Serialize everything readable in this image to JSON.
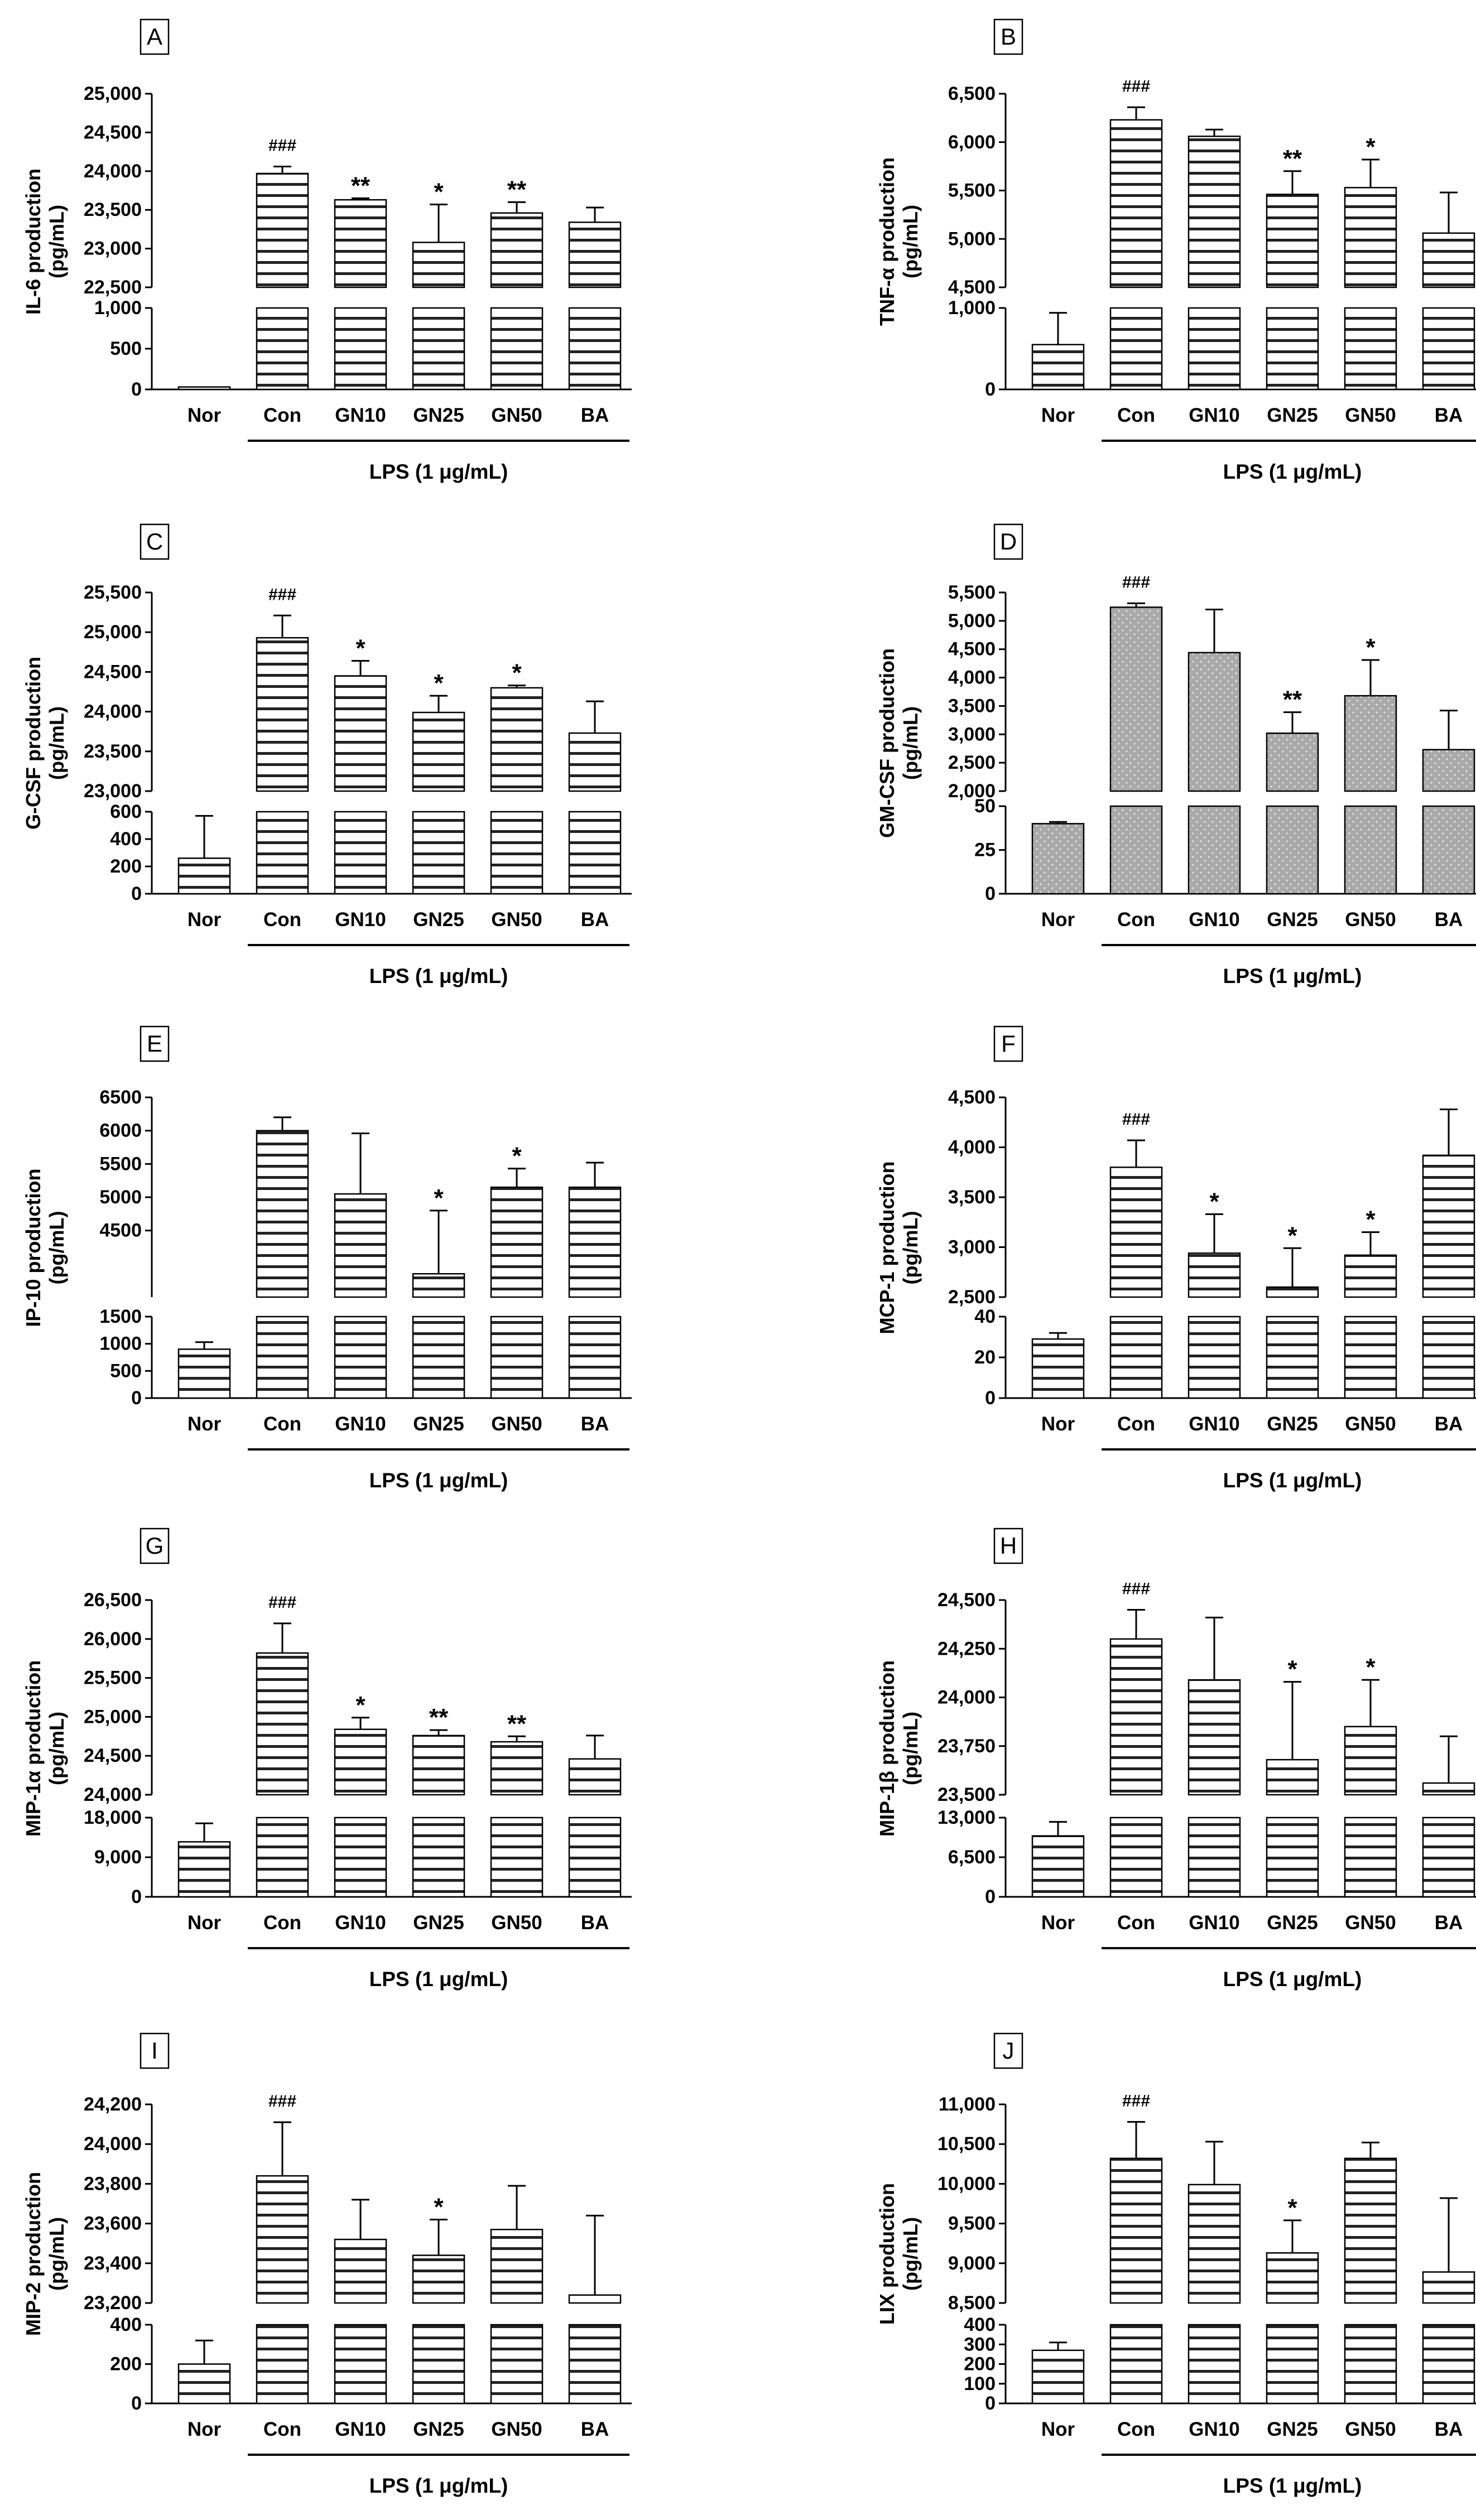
{
  "figure": {
    "group_label": "LPS (1 μg/mL)",
    "categories": [
      "Nor",
      "Con",
      "GN10",
      "GN25",
      "GN50",
      "BA"
    ]
  },
  "chart_data": [
    {
      "panel": "A",
      "type": "bar",
      "ylabel": [
        "IL-6 production",
        "(pg/mL)"
      ],
      "fill": "hlines",
      "categories": [
        "Nor",
        "Con",
        "GN10",
        "GN25",
        "GN50",
        "BA"
      ],
      "values": [
        30,
        23970,
        23630,
        23080,
        23460,
        23340
      ],
      "errors": [
        0,
        90,
        20,
        490,
        140,
        190
      ],
      "marks": [
        "",
        "###",
        "**",
        "*",
        "**",
        ""
      ],
      "upper": {
        "range": [
          22500,
          25000
        ],
        "ticks": [
          22500,
          23000,
          23500,
          24000,
          24500,
          25000
        ],
        "tick_labels": [
          "22,500",
          "23,000",
          "23,500",
          "24,000",
          "24,500",
          "25,000"
        ]
      },
      "lower": {
        "range": [
          0,
          1000
        ],
        "ticks": [
          0,
          500,
          1000
        ],
        "tick_labels": [
          "0",
          "500",
          "1,000"
        ]
      }
    },
    {
      "panel": "B",
      "type": "bar",
      "ylabel": [
        "TNF-α production",
        "(pg/mL)"
      ],
      "fill": "hlines",
      "categories": [
        "Nor",
        "Con",
        "GN10",
        "GN25",
        "GN50",
        "BA"
      ],
      "values": [
        550,
        6230,
        6060,
        5460,
        5530,
        5060
      ],
      "errors": [
        390,
        130,
        70,
        240,
        290,
        420
      ],
      "marks": [
        "",
        "###",
        "",
        "**",
        "*",
        ""
      ],
      "upper": {
        "range": [
          4500,
          6500
        ],
        "ticks": [
          4500,
          5000,
          5500,
          6000,
          6500
        ],
        "tick_labels": [
          "4,500",
          "5,000",
          "5,500",
          "6,000",
          "6,500"
        ]
      },
      "lower": {
        "range": [
          0,
          1000
        ],
        "ticks": [
          0,
          1000
        ],
        "tick_labels": [
          "0",
          "1,000"
        ]
      }
    },
    {
      "panel": "C",
      "type": "bar",
      "ylabel": [
        "G-CSF production",
        "(pg/mL)"
      ],
      "fill": "hlines",
      "categories": [
        "Nor",
        "Con",
        "GN10",
        "GN25",
        "GN50",
        "BA"
      ],
      "values": [
        260,
        24930,
        24450,
        23990,
        24300,
        23730
      ],
      "errors": [
        310,
        280,
        190,
        210,
        30,
        400
      ],
      "marks": [
        "",
        "###",
        "*",
        "*",
        "*",
        ""
      ],
      "upper": {
        "range": [
          23000,
          25500
        ],
        "ticks": [
          23000,
          23500,
          24000,
          24500,
          25000,
          25500
        ],
        "tick_labels": [
          "23,000",
          "23,500",
          "24,000",
          "24,500",
          "25,000",
          "25,500"
        ]
      },
      "lower": {
        "range": [
          0,
          600
        ],
        "ticks": [
          0,
          200,
          400,
          600
        ],
        "tick_labels": [
          "0",
          "200",
          "400",
          "600"
        ]
      }
    },
    {
      "panel": "D",
      "type": "bar",
      "ylabel": [
        "GM-CSF production",
        "(pg/mL)"
      ],
      "fill": "dots",
      "categories": [
        "Nor",
        "Con",
        "GN10",
        "GN25",
        "GN50",
        "BA"
      ],
      "values": [
        40,
        5240,
        4440,
        3020,
        3680,
        2730
      ],
      "errors": [
        1,
        70,
        760,
        370,
        630,
        690
      ],
      "marks": [
        "",
        "###",
        "",
        "**",
        "*",
        ""
      ],
      "upper": {
        "range": [
          2000,
          5500
        ],
        "ticks": [
          2000,
          2500,
          3000,
          3500,
          4000,
          4500,
          5000,
          5500
        ],
        "tick_labels": [
          "2,000",
          "2,500",
          "3,000",
          "3,500",
          "4,000",
          "4,500",
          "5,000",
          "5,500"
        ]
      },
      "lower": {
        "range": [
          0,
          50
        ],
        "ticks": [
          0,
          25,
          50
        ],
        "tick_labels": [
          "0",
          "25",
          "50"
        ]
      }
    },
    {
      "panel": "E",
      "type": "bar",
      "ylabel": [
        "IP-10 production",
        "(pg/mL)"
      ],
      "fill": "hlines",
      "categories": [
        "Nor",
        "Con",
        "GN10",
        "GN25",
        "GN50",
        "BA"
      ],
      "values": [
        900,
        6000,
        5050,
        3850,
        5150,
        5150
      ],
      "errors": [
        130,
        200,
        910,
        950,
        280,
        370
      ],
      "marks": [
        "",
        "",
        "",
        "*",
        "*",
        ""
      ],
      "upper": {
        "range": [
          3500,
          6500
        ],
        "ticks": [
          4500,
          5000,
          5500,
          6000,
          6500
        ],
        "tick_labels": [
          "4500",
          "5000",
          "5500",
          "6000",
          "6500"
        ]
      },
      "lower": {
        "range": [
          0,
          1500
        ],
        "ticks": [
          0,
          500,
          1000,
          1500
        ],
        "tick_labels": [
          "0",
          "500",
          "1000",
          "1500"
        ]
      }
    },
    {
      "panel": "F",
      "type": "bar",
      "ylabel": [
        "MCP-1 production",
        "(pg/mL)"
      ],
      "fill": "hlines",
      "categories": [
        "Nor",
        "Con",
        "GN10",
        "GN25",
        "GN50",
        "BA"
      ],
      "values": [
        29,
        3800,
        2940,
        2600,
        2920,
        3920
      ],
      "errors": [
        3,
        270,
        390,
        390,
        230,
        460
      ],
      "marks": [
        "",
        "###",
        "*",
        "*",
        "*",
        ""
      ],
      "upper": {
        "range": [
          2500,
          4500
        ],
        "ticks": [
          2500,
          3000,
          3500,
          4000,
          4500
        ],
        "tick_labels": [
          "2,500",
          "3,000",
          "3,500",
          "4,000",
          "4,500"
        ]
      },
      "lower": {
        "range": [
          0,
          40
        ],
        "ticks": [
          0,
          20,
          40
        ],
        "tick_labels": [
          "0",
          "20",
          "40"
        ]
      }
    },
    {
      "panel": "G",
      "type": "bar",
      "ylabel": [
        "MIP-1α production",
        "(pg/mL)"
      ],
      "fill": "hlines",
      "categories": [
        "Nor",
        "Con",
        "GN10",
        "GN25",
        "GN50",
        "BA"
      ],
      "values": [
        12500,
        25820,
        24840,
        24760,
        24680,
        24460
      ],
      "errors": [
        4200,
        380,
        150,
        70,
        70,
        300
      ],
      "marks": [
        "",
        "###",
        "*",
        "**",
        "**",
        ""
      ],
      "upper": {
        "range": [
          24000,
          26500
        ],
        "ticks": [
          24000,
          24500,
          25000,
          25500,
          26000,
          26500
        ],
        "tick_labels": [
          "24,000",
          "24,500",
          "25,000",
          "25,500",
          "26,000",
          "26,500"
        ]
      },
      "lower": {
        "range": [
          0,
          18000
        ],
        "ticks": [
          0,
          9000,
          18000
        ],
        "tick_labels": [
          "0",
          "9,000",
          "18,000"
        ]
      }
    },
    {
      "panel": "H",
      "type": "bar",
      "ylabel": [
        "MIP-1β production",
        "(pg/mL)"
      ],
      "fill": "hlines",
      "categories": [
        "Nor",
        "Con",
        "GN10",
        "GN25",
        "GN50",
        "BA"
      ],
      "values": [
        10000,
        24300,
        24090,
        23680,
        23850,
        23560
      ],
      "errors": [
        2300,
        150,
        320,
        400,
        240,
        240
      ],
      "marks": [
        "",
        "###",
        "",
        "*",
        "*",
        ""
      ],
      "upper": {
        "range": [
          23500,
          24500
        ],
        "ticks": [
          23500,
          23750,
          24000,
          24250,
          24500
        ],
        "tick_labels": [
          "23,500",
          "23,750",
          "24,000",
          "24,250",
          "24,500"
        ]
      },
      "lower": {
        "range": [
          0,
          13000
        ],
        "ticks": [
          0,
          6500,
          13000
        ],
        "tick_labels": [
          "0",
          "6,500",
          "13,000"
        ]
      }
    },
    {
      "panel": "I",
      "type": "bar",
      "ylabel": [
        "MIP-2 production",
        "(pg/mL)"
      ],
      "fill": "hlines",
      "categories": [
        "Nor",
        "Con",
        "GN10",
        "GN25",
        "GN50",
        "BA"
      ],
      "values": [
        200,
        23840,
        23520,
        23440,
        23570,
        23240
      ],
      "errors": [
        120,
        270,
        200,
        180,
        220,
        400
      ],
      "marks": [
        "",
        "###",
        "",
        "*",
        "",
        ""
      ],
      "upper": {
        "range": [
          23200,
          24200
        ],
        "ticks": [
          23200,
          23400,
          23600,
          23800,
          24000,
          24200
        ],
        "tick_labels": [
          "23,200",
          "23,400",
          "23,600",
          "23,800",
          "24,000",
          "24,200"
        ]
      },
      "lower": {
        "range": [
          0,
          400
        ],
        "ticks": [
          0,
          200,
          400
        ],
        "tick_labels": [
          "0",
          "200",
          "400"
        ]
      }
    },
    {
      "panel": "J",
      "type": "bar",
      "ylabel": [
        "LIX production",
        "(pg/mL)"
      ],
      "fill": "hlines",
      "categories": [
        "Nor",
        "Con",
        "GN10",
        "GN25",
        "GN50",
        "BA"
      ],
      "values": [
        270,
        10320,
        9990,
        9130,
        10320,
        8890
      ],
      "errors": [
        40,
        460,
        540,
        410,
        200,
        930
      ],
      "marks": [
        "",
        "###",
        "",
        "*",
        "",
        ""
      ],
      "upper": {
        "range": [
          8500,
          11000
        ],
        "ticks": [
          8500,
          9000,
          9500,
          10000,
          10500,
          11000
        ],
        "tick_labels": [
          "8,500",
          "9,000",
          "9,500",
          "10,000",
          "10,500",
          "11,000"
        ]
      },
      "lower": {
        "range": [
          0,
          400
        ],
        "ticks": [
          0,
          100,
          200,
          300,
          400
        ],
        "tick_labels": [
          "0",
          "100",
          "200",
          "300",
          "400"
        ]
      }
    }
  ]
}
